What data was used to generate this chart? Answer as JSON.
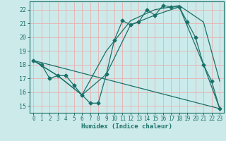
{
  "xlabel": "Humidex (Indice chaleur)",
  "bg_color": "#cceaea",
  "grid_color": "#e8b0b0",
  "line_color": "#1a7068",
  "xlim": [
    -0.5,
    23.5
  ],
  "ylim": [
    14.5,
    22.6
  ],
  "xticks": [
    0,
    1,
    2,
    3,
    4,
    5,
    6,
    7,
    8,
    9,
    10,
    11,
    12,
    13,
    14,
    15,
    16,
    17,
    18,
    19,
    20,
    21,
    22,
    23
  ],
  "yticks": [
    15,
    16,
    17,
    18,
    19,
    20,
    21,
    22
  ],
  "lines": [
    {
      "x": [
        0,
        1,
        2,
        3,
        4,
        5,
        6,
        7,
        8,
        9,
        10,
        11,
        12,
        13,
        14,
        15,
        16,
        17,
        18,
        19,
        20,
        21,
        22,
        23
      ],
      "y": [
        18.3,
        18.0,
        17.0,
        17.2,
        17.2,
        16.5,
        15.8,
        15.2,
        15.2,
        17.3,
        19.8,
        21.2,
        20.9,
        21.1,
        22.0,
        21.6,
        22.3,
        22.2,
        22.2,
        21.1,
        20.0,
        18.0,
        16.8,
        14.8
      ],
      "marker": "D",
      "markersize": 2.5
    },
    {
      "x": [
        0,
        3,
        6,
        9,
        12,
        15,
        18,
        21,
        23
      ],
      "y": [
        18.3,
        17.2,
        15.8,
        17.3,
        20.9,
        21.6,
        22.2,
        18.0,
        14.8
      ],
      "marker": null,
      "markersize": 0
    },
    {
      "x": [
        0,
        3,
        6,
        9,
        12,
        15,
        18,
        21,
        23
      ],
      "y": [
        18.3,
        17.2,
        15.8,
        19.0,
        21.2,
        22.0,
        22.3,
        21.1,
        16.8
      ],
      "marker": null,
      "markersize": 0
    },
    {
      "x": [
        0,
        23
      ],
      "y": [
        18.3,
        14.8
      ],
      "marker": null,
      "markersize": 0
    }
  ]
}
